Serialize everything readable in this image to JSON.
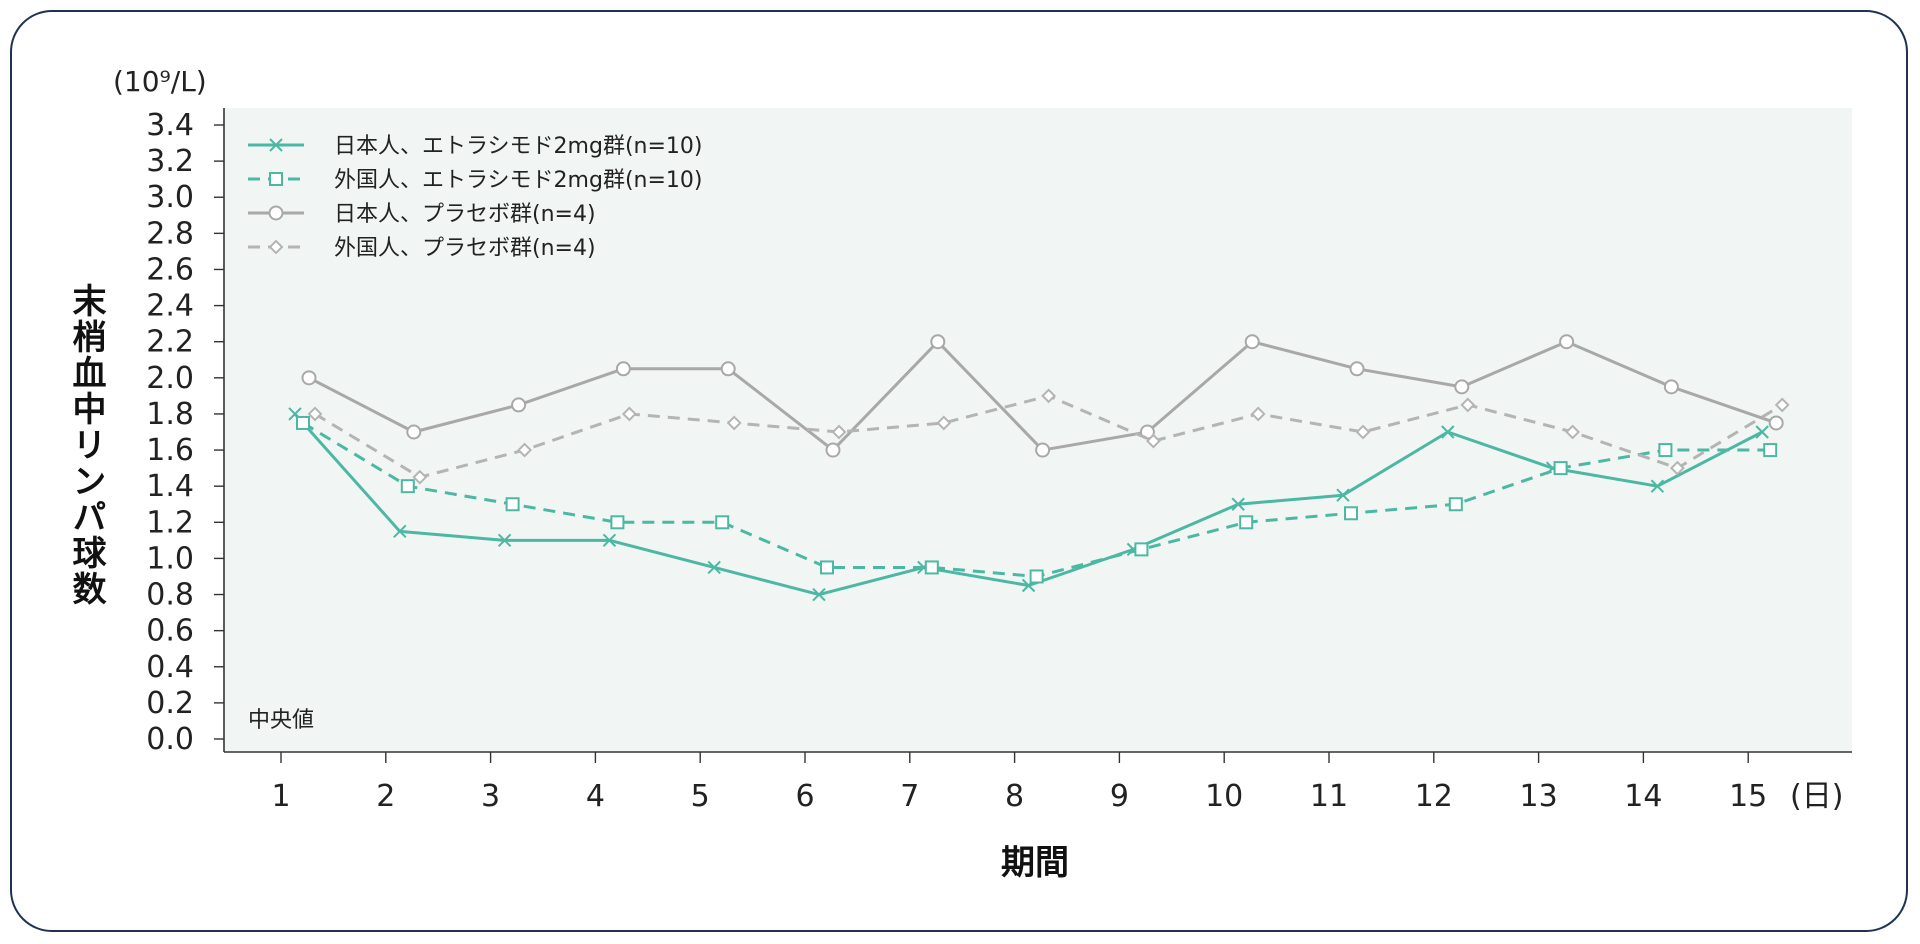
{
  "chart_data": {
    "type": "line",
    "unit_label": "(10⁹/L)",
    "ylabel": "末梢血中リンパ球数",
    "xlabel": "期間",
    "x_unit": "(日)",
    "note": "中央値",
    "categories": [
      "1",
      "2",
      "3",
      "4",
      "5",
      "6",
      "7",
      "8",
      "9",
      "10",
      "11",
      "12",
      "13",
      "14",
      "15"
    ],
    "yticks": [
      "0.0",
      "0.2",
      "0.4",
      "0.6",
      "0.8",
      "1.0",
      "1.2",
      "1.4",
      "1.6",
      "1.8",
      "2.0",
      "2.2",
      "2.4",
      "2.6",
      "2.8",
      "3.0",
      "3.2",
      "3.4"
    ],
    "ylim": [
      0,
      3.4
    ],
    "series": [
      {
        "name": "日本人、エトラシモド2mg群(n=10)",
        "color": "#4cb8a4",
        "dash": false,
        "marker": "x",
        "values": [
          1.8,
          1.15,
          1.1,
          1.1,
          0.95,
          0.8,
          0.95,
          0.85,
          1.05,
          1.3,
          1.35,
          1.7,
          1.5,
          1.4,
          1.7
        ]
      },
      {
        "name": "外国人、エトラシモド2mg群(n=10)",
        "color": "#4cb8a4",
        "dash": true,
        "marker": "square",
        "values": [
          1.75,
          1.4,
          1.3,
          1.2,
          1.2,
          0.95,
          0.95,
          0.9,
          1.05,
          1.2,
          1.25,
          1.3,
          1.5,
          1.6,
          1.6
        ]
      },
      {
        "name": "日本人、プラセボ群(n=4)",
        "color": "#a8a8a8",
        "dash": false,
        "marker": "circle",
        "values": [
          2.0,
          1.7,
          1.85,
          2.05,
          2.05,
          1.6,
          2.2,
          1.6,
          1.7,
          2.2,
          2.05,
          1.95,
          2.2,
          1.95,
          1.75
        ]
      },
      {
        "name": "外国人、プラセボ群(n=4)",
        "color": "#b4b4b4",
        "dash": true,
        "marker": "diamond",
        "values": [
          1.8,
          1.45,
          1.6,
          1.8,
          1.75,
          1.7,
          1.75,
          1.9,
          1.65,
          1.8,
          1.7,
          1.85,
          1.7,
          1.5,
          1.85
        ]
      }
    ]
  }
}
